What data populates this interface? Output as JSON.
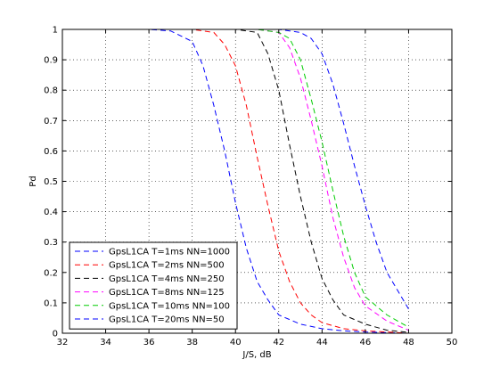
{
  "chart_data": {
    "type": "line",
    "title": "",
    "xlabel": "J/S, dB",
    "ylabel": "Pd",
    "xlim": [
      32,
      50
    ],
    "ylim": [
      0,
      1
    ],
    "xticks": [
      32,
      34,
      36,
      38,
      40,
      42,
      44,
      46,
      48,
      50
    ],
    "yticks": [
      0,
      0.1,
      0.2,
      0.3,
      0.4,
      0.5,
      0.6,
      0.7,
      0.8,
      0.9,
      1
    ],
    "grid": true,
    "legend_position": "bottom-left",
    "series": [
      {
        "name": "GpsL1CA T=1ms NN=1000",
        "color": "#0000ff",
        "x": [
          32,
          36,
          37,
          38,
          38.5,
          39,
          39.5,
          40,
          40.5,
          41,
          41.5,
          42,
          43,
          44,
          45,
          46,
          47,
          48
        ],
        "y": [
          1,
          1,
          0.995,
          0.96,
          0.88,
          0.75,
          0.6,
          0.43,
          0.28,
          0.17,
          0.11,
          0.06,
          0.03,
          0.015,
          0.008,
          0.004,
          0.002,
          0
        ]
      },
      {
        "name": "GpsL1CA T=2ms NN=500",
        "color": "#ff0000",
        "x": [
          32,
          38,
          39,
          39.5,
          40,
          40.5,
          41,
          41.5,
          42,
          42.5,
          43,
          43.5,
          44,
          45,
          46,
          47,
          48
        ],
        "y": [
          1,
          1,
          0.99,
          0.95,
          0.88,
          0.75,
          0.58,
          0.42,
          0.27,
          0.17,
          0.1,
          0.06,
          0.035,
          0.015,
          0.008,
          0.004,
          0
        ]
      },
      {
        "name": "GpsL1CA T=4ms NN=250",
        "color": "#000000",
        "x": [
          32,
          40,
          41,
          41.5,
          42,
          42.5,
          43,
          43.5,
          44,
          44.5,
          45,
          46,
          47,
          48
        ],
        "y": [
          1,
          1,
          0.99,
          0.92,
          0.8,
          0.62,
          0.45,
          0.3,
          0.18,
          0.11,
          0.06,
          0.03,
          0.01,
          0.003
        ]
      },
      {
        "name": "GpsL1CA T=8ms NN=125",
        "color": "#ff00ff",
        "x": [
          32,
          41,
          42,
          42.5,
          43,
          43.5,
          44,
          44.5,
          45,
          45.5,
          46,
          47,
          48
        ],
        "y": [
          1,
          1,
          0.99,
          0.94,
          0.84,
          0.7,
          0.55,
          0.38,
          0.25,
          0.15,
          0.09,
          0.04,
          0.01
        ]
      },
      {
        "name": "GpsL1CA T=10ms NN=100",
        "color": "#00cc00",
        "x": [
          32,
          41,
          42,
          42.5,
          43,
          43.5,
          44,
          44.5,
          45,
          45.5,
          46,
          47,
          48
        ],
        "y": [
          1,
          1,
          0.99,
          0.97,
          0.9,
          0.77,
          0.63,
          0.47,
          0.32,
          0.2,
          0.12,
          0.06,
          0.02
        ]
      },
      {
        "name": "GpsL1CA T=20ms NN=50",
        "color": "#0000ff",
        "x": [
          32,
          42,
          43,
          43.5,
          44,
          44.5,
          45,
          45.5,
          46,
          46.5,
          47,
          47.5,
          48
        ],
        "y": [
          1,
          1,
          0.99,
          0.97,
          0.92,
          0.82,
          0.69,
          0.55,
          0.42,
          0.3,
          0.2,
          0.14,
          0.08
        ]
      }
    ]
  }
}
